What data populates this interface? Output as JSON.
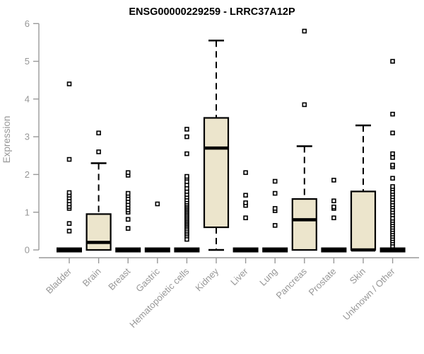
{
  "chart_data": {
    "type": "boxplot",
    "title": "ENSG00000229259 - LRRC37A12P",
    "ylabel": "Expression",
    "xlabel": "",
    "ylim": [
      0,
      6
    ],
    "yticks": [
      0,
      1,
      2,
      3,
      4,
      5,
      6
    ],
    "grid": false,
    "legend": "none",
    "categories": [
      "Bladder",
      "Brain",
      "Breast",
      "Gastric",
      "Hematopoietic cells",
      "Kidney",
      "Liver",
      "Lung",
      "Pancreas",
      "Prostate",
      "Skin",
      "Unknown / Other"
    ],
    "series": [
      {
        "name": "Bladder",
        "q1": 0,
        "median": 0,
        "q3": 0,
        "whisker_low": 0,
        "whisker_high": 0,
        "outliers": [
          0.5,
          0.7,
          1.1,
          1.15,
          1.22,
          1.3,
          1.38,
          1.45,
          1.52,
          2.4,
          4.4
        ]
      },
      {
        "name": "Brain",
        "q1": 0,
        "median": 0.2,
        "q3": 0.95,
        "whisker_low": 0,
        "whisker_high": 2.3,
        "outliers": [
          2.6,
          3.1
        ]
      },
      {
        "name": "Breast",
        "q1": 0,
        "median": 0,
        "q3": 0,
        "whisker_low": 0,
        "whisker_high": 0,
        "outliers": [
          0.57,
          0.81,
          1.0,
          1.06,
          1.13,
          1.2,
          1.28,
          1.36,
          1.44,
          1.5,
          1.98,
          2.05
        ]
      },
      {
        "name": "Gastric",
        "q1": 0,
        "median": 0,
        "q3": 0,
        "whisker_low": 0,
        "whisker_high": 0,
        "outliers": [
          1.22
        ]
      },
      {
        "name": "Hematopoietic cells",
        "q1": 0,
        "median": 0,
        "q3": 0,
        "whisker_low": 0,
        "whisker_high": 0,
        "outliers": [
          0.28,
          0.37,
          0.42,
          0.47,
          0.52,
          0.57,
          0.62,
          0.66,
          0.7,
          0.74,
          0.78,
          0.82,
          0.86,
          0.9,
          0.94,
          0.98,
          1.02,
          1.06,
          1.1,
          1.14,
          1.18,
          1.22,
          1.27,
          1.33,
          1.4,
          1.47,
          1.55,
          1.63,
          1.72,
          1.81,
          1.9,
          1.95,
          2.55,
          3.0,
          3.2
        ]
      },
      {
        "name": "Kidney",
        "q1": 0.6,
        "median": 2.7,
        "q3": 3.5,
        "whisker_low": 0,
        "whisker_high": 5.55,
        "outliers": []
      },
      {
        "name": "Liver",
        "q1": 0,
        "median": 0,
        "q3": 0,
        "whisker_low": 0,
        "whisker_high": 0,
        "outliers": [
          0.85,
          1.18,
          1.25,
          1.45,
          2.05
        ]
      },
      {
        "name": "Lung",
        "q1": 0,
        "median": 0,
        "q3": 0,
        "whisker_low": 0,
        "whisker_high": 0,
        "outliers": [
          0.65,
          1.04,
          1.1,
          1.5,
          1.82
        ]
      },
      {
        "name": "Pancreas",
        "q1": 0,
        "median": 0.8,
        "q3": 1.35,
        "whisker_low": 0,
        "whisker_high": 2.75,
        "outliers": [
          3.85,
          5.8
        ]
      },
      {
        "name": "Prostate",
        "q1": 0,
        "median": 0,
        "q3": 0,
        "whisker_low": 0,
        "whisker_high": 0,
        "outliers": [
          0.85,
          1.1,
          1.14,
          1.3,
          1.85
        ]
      },
      {
        "name": "Skin",
        "q1": 0,
        "median": 0,
        "q3": 1.55,
        "whisker_low": 0,
        "whisker_high": 3.3,
        "outliers": []
      },
      {
        "name": "Unknown / Other",
        "q1": 0,
        "median": 0,
        "q3": 0,
        "whisker_low": 0,
        "whisker_high": 0,
        "outliers": [
          0.1,
          0.18,
          0.24,
          0.3,
          0.36,
          0.42,
          0.48,
          0.54,
          0.6,
          0.66,
          0.72,
          0.78,
          0.84,
          0.93,
          1.0,
          1.07,
          1.14,
          1.2,
          1.27,
          1.34,
          1.41,
          1.48,
          1.55,
          1.62,
          1.68,
          1.9,
          2.2,
          2.25,
          2.45,
          2.55,
          3.1,
          3.6,
          5.0
        ]
      }
    ],
    "colors": {
      "background": "#ffffff",
      "box_fill": "#ECE5CC",
      "box_stroke": "#000000",
      "median": "#000000",
      "whisker": "#000000",
      "outlier_stroke": "#000000",
      "outlier_fill": "#ffffff",
      "axis": "#999999",
      "tick_label": "#979797",
      "title": "#000000"
    }
  }
}
